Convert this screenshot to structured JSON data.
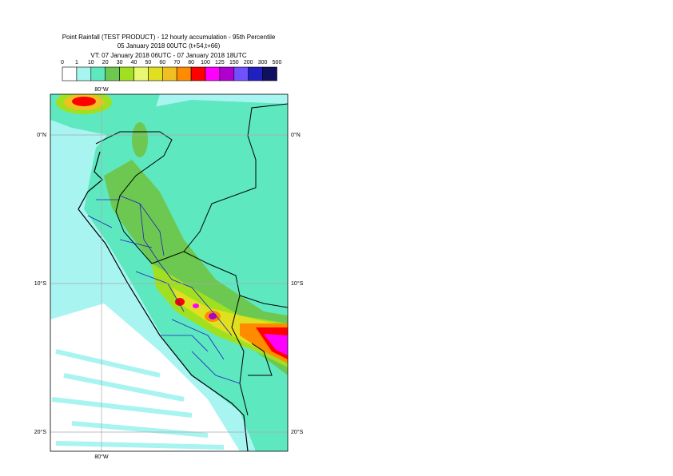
{
  "header": {
    "title": "Point Rainfall (TEST PRODUCT) - 12 hourly accumulation - 95th Percentile",
    "line2": "05 January 2018 00UTC (t+54,t+66)",
    "line3": "VT: 07 January 2018 06UTC - 07 January 2018 18UTC"
  },
  "legend": {
    "labels": [
      0,
      1,
      10,
      20,
      30,
      40,
      50,
      60,
      70,
      80,
      100,
      125,
      150,
      200,
      300,
      500
    ],
    "colors": [
      "#ffffff",
      "#a8f4f0",
      "#5ee8c0",
      "#6cc850",
      "#a0e020",
      "#e8f870",
      "#e0e020",
      "#f0c020",
      "#ff8c00",
      "#ff0000",
      "#ff00ff",
      "#b000d0",
      "#7050ff",
      "#2020c0",
      "#101060"
    ]
  },
  "map": {
    "longitude_label": "80°W",
    "latitude_labels": [
      "0°N",
      "10°S",
      "20°S"
    ]
  }
}
